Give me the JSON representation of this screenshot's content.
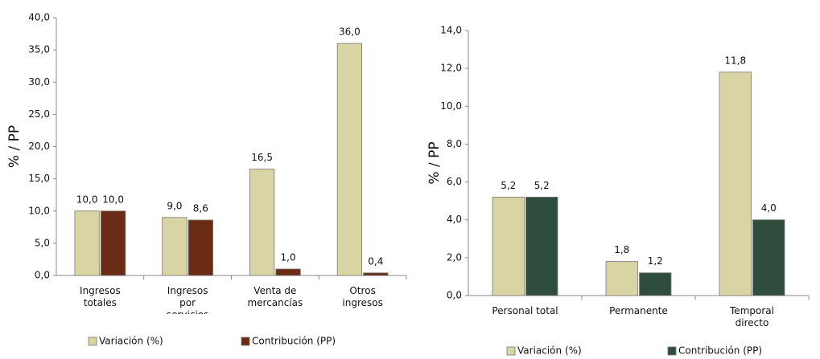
{
  "chart_data": [
    {
      "type": "bar",
      "ylabel": "% / PP",
      "categories": [
        "Ingresos totales",
        "Ingresos por servicios",
        "Venta de mercancías",
        "Otros ingresos"
      ],
      "series": [
        {
          "name": "Variación (%)",
          "color": "#d9d4a4",
          "values": [
            10.0,
            9.0,
            16.5,
            36.0
          ],
          "value_labels": [
            "10,0",
            "9,0",
            "16,5",
            "36,0"
          ]
        },
        {
          "name": "Contribución (PP)",
          "color": "#6a2c14",
          "values": [
            10.0,
            8.6,
            1.0,
            0.4
          ],
          "value_labels": [
            "10,0",
            "8,6",
            "1,0",
            "0,4"
          ]
        }
      ],
      "ylim": [
        0,
        40
      ],
      "yticks": [
        {
          "value": 0,
          "label": "0,0"
        },
        {
          "value": 5,
          "label": "5,0"
        },
        {
          "value": 10,
          "label": "10,0"
        },
        {
          "value": 15,
          "label": "15,0"
        },
        {
          "value": 20,
          "label": "20,0"
        },
        {
          "value": 25,
          "label": "25,0"
        },
        {
          "value": 30,
          "label": "30,0"
        },
        {
          "value": 35,
          "label": "35,0"
        },
        {
          "value": 40,
          "label": "40,0"
        }
      ]
    },
    {
      "type": "bar",
      "ylabel": "% / PP",
      "categories": [
        "Personal total",
        "Permanente",
        "Temporal directo"
      ],
      "series": [
        {
          "name": "Variación (%)",
          "color": "#d9d4a4",
          "values": [
            5.2,
            1.8,
            11.8
          ],
          "value_labels": [
            "5,2",
            "1,8",
            "11,8"
          ]
        },
        {
          "name": "Contribución (PP)",
          "color": "#2f4d3c",
          "values": [
            5.2,
            1.2,
            4.0
          ],
          "value_labels": [
            "5,2",
            "1,2",
            "4,0"
          ]
        }
      ],
      "ylim": [
        0,
        14
      ],
      "yticks": [
        {
          "value": 0,
          "label": "0,0"
        },
        {
          "value": 2,
          "label": "2,0"
        },
        {
          "value": 4,
          "label": "4,0"
        },
        {
          "value": 6,
          "label": "6,0"
        },
        {
          "value": 8,
          "label": "8,0"
        },
        {
          "value": 10,
          "label": "10,0"
        },
        {
          "value": 12,
          "label": "12,0"
        },
        {
          "value": 14,
          "label": "14,0"
        }
      ]
    }
  ]
}
